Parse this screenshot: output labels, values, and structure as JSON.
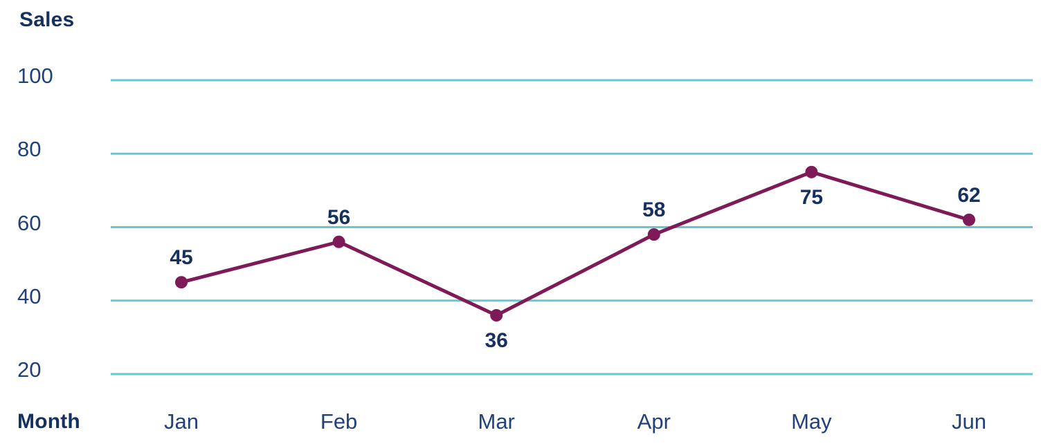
{
  "chart_data": {
    "type": "line",
    "title": "Sales",
    "xlabel": "Month",
    "categories": [
      "Jan",
      "Feb",
      "Mar",
      "Apr",
      "May",
      "Jun"
    ],
    "values": [
      45,
      56,
      36,
      58,
      75,
      62
    ],
    "y_ticks": [
      100,
      80,
      60,
      40,
      20
    ],
    "ylim": [
      20,
      100
    ],
    "grid": "horizontal-only",
    "legend": "none",
    "label_positions": [
      "above",
      "above",
      "below",
      "above",
      "below",
      "above"
    ],
    "colors": {
      "line": "#7d1a57",
      "point": "#7d1a57",
      "gridline": "#62c9d3",
      "text_regular": "#21417b",
      "text_bold": "#16315f",
      "background": "#ffffff"
    }
  }
}
